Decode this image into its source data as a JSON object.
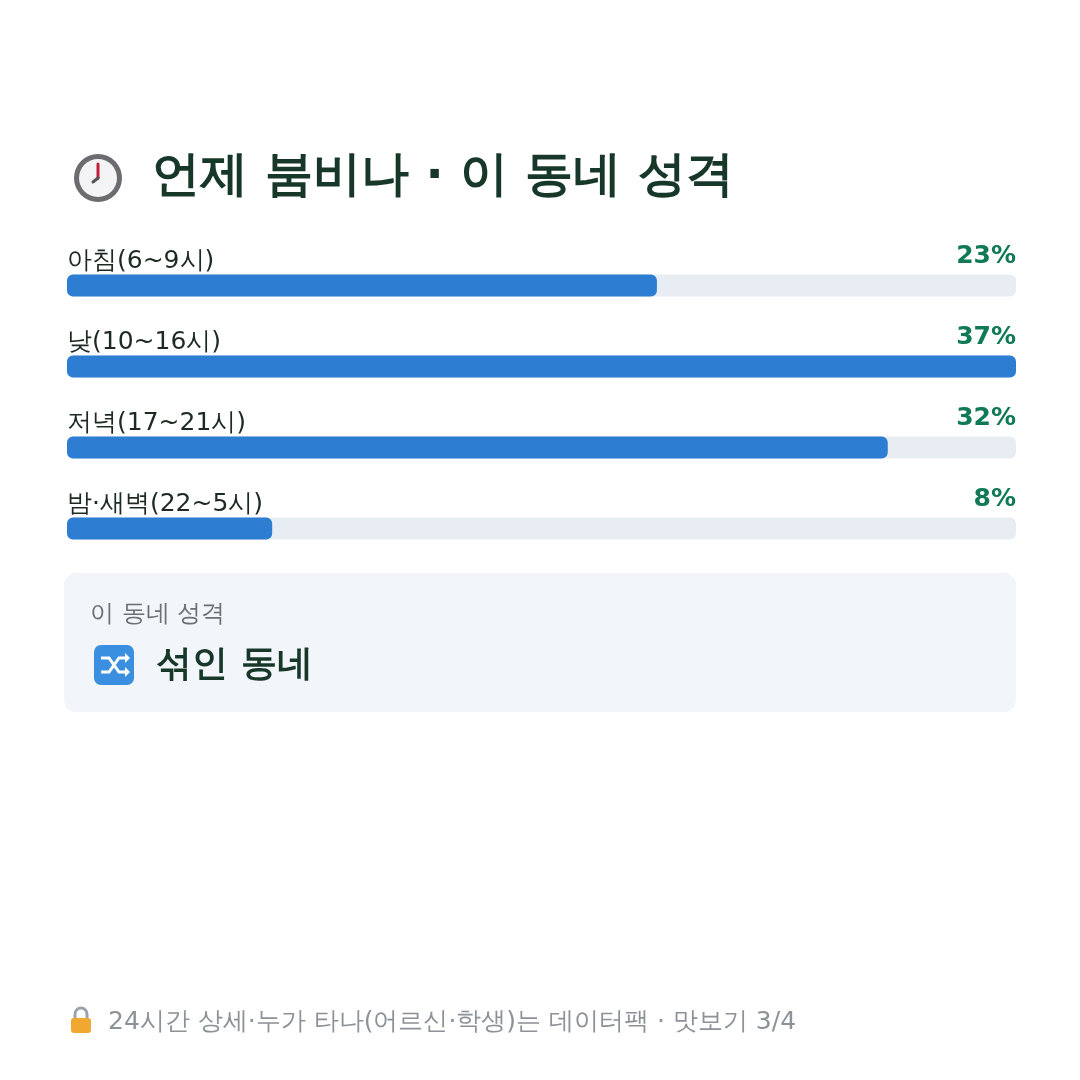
{
  "chart_data": {
    "type": "bar",
    "orientation": "horizontal",
    "title": "언제 붐비나 · 이 동네 성격",
    "categories": [
      "아침(6~9시)",
      "낮(10~16시)",
      "저녁(17~21시)",
      "밤·새벽(22~5시)"
    ],
    "values": [
      23,
      37,
      32,
      8
    ],
    "value_labels": [
      "23%",
      "37%",
      "32%",
      "8%"
    ],
    "color": "#2d7dd2",
    "xlim": [
      0,
      37
    ],
    "tick_labels": "y",
    "annotations": [
      "이 동네 성격",
      "섞인 동네",
      "24시간 상세·누가 타나(어르신·학생)는 데이터팩 · 맛보기 3/4"
    ]
  }
}
